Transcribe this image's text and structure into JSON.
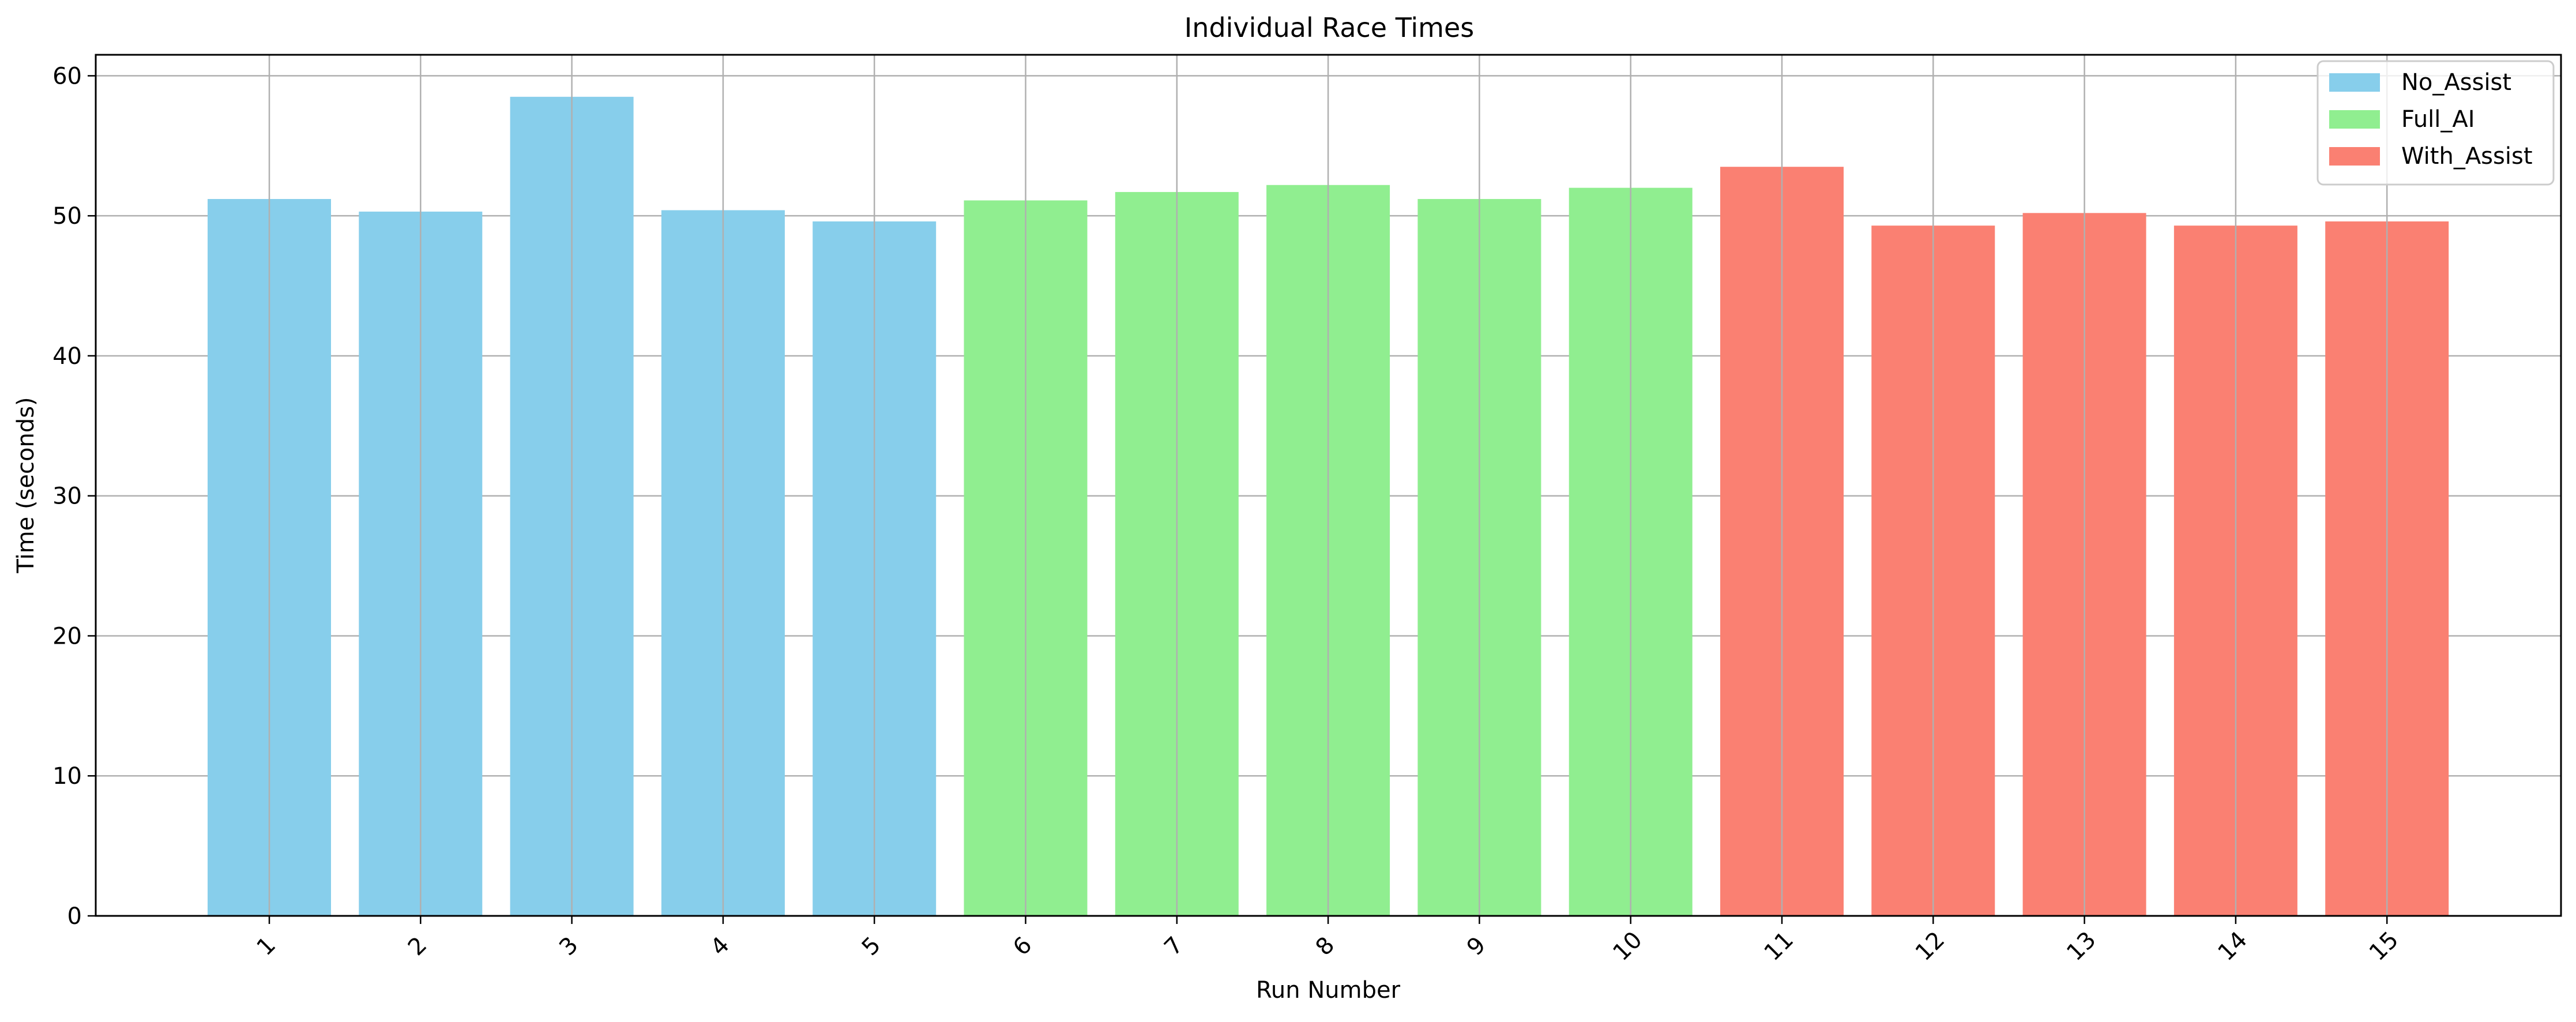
{
  "chart_data": {
    "type": "bar",
    "title": "Individual Race Times",
    "xlabel": "Run Number",
    "ylabel": "Time (seconds)",
    "categories": [
      "1",
      "2",
      "3",
      "4",
      "5",
      "6",
      "7",
      "8",
      "9",
      "10",
      "11",
      "12",
      "13",
      "14",
      "15"
    ],
    "values": [
      51.2,
      50.3,
      58.5,
      50.4,
      49.6,
      51.1,
      51.7,
      52.2,
      51.2,
      52.0,
      53.5,
      49.3,
      50.2,
      49.3,
      49.6
    ],
    "groups": [
      "No_Assist",
      "No_Assist",
      "No_Assist",
      "No_Assist",
      "No_Assist",
      "Full_AI",
      "Full_AI",
      "Full_AI",
      "Full_AI",
      "Full_AI",
      "With_Assist",
      "With_Assist",
      "With_Assist",
      "With_Assist",
      "With_Assist"
    ],
    "ylim": [
      0,
      61.5
    ],
    "yticks": [
      0,
      10,
      20,
      30,
      40,
      50,
      60
    ],
    "grid": true,
    "legend": {
      "placement": "top-right",
      "entries": [
        {
          "label": "No_Assist",
          "color": "#87ceeb"
        },
        {
          "label": "Full_AI",
          "color": "#90ee90"
        },
        {
          "label": "With_Assist",
          "color": "#fa8072"
        }
      ]
    },
    "colors": {
      "No_Assist": "#87ceeb",
      "Full_AI": "#90ee90",
      "With_Assist": "#fa8072",
      "grid": "#b0b0b0",
      "axis": "#000000"
    }
  }
}
